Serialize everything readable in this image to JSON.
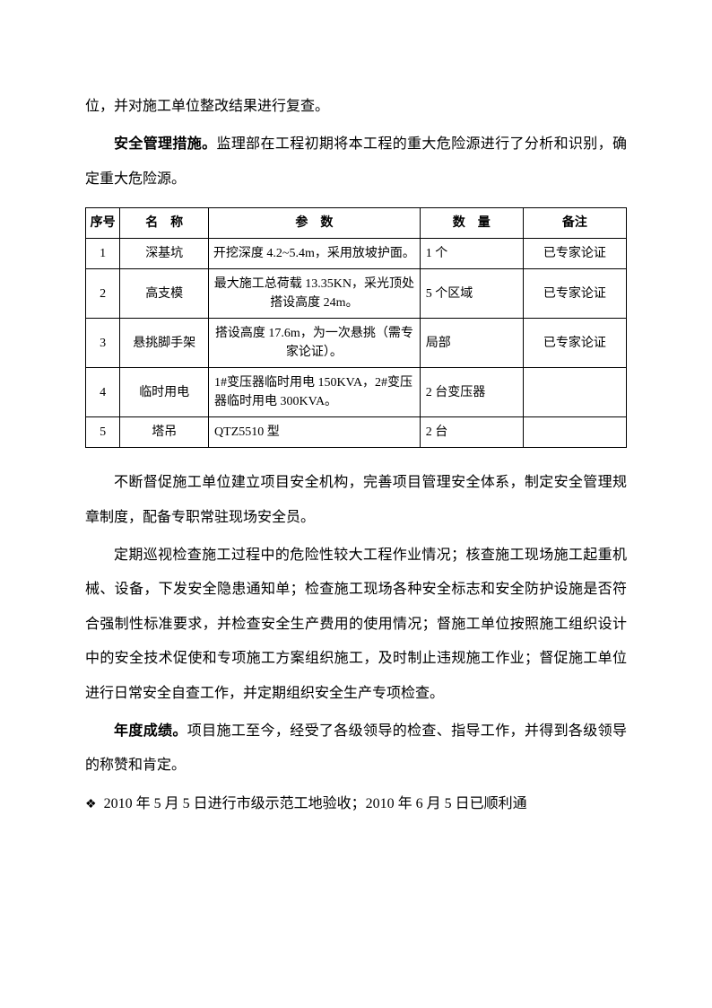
{
  "para1": "位，并对施工单位整改结果进行复查。",
  "para2_bold": "安全管理措施。",
  "para2_rest": "监理部在工程初期将本工程的重大危险源进行了分析和识别，确定重大危险源。",
  "table": {
    "headers": {
      "seq": "序号",
      "name": "名　称",
      "param": "参　数",
      "qty": "数　量",
      "remark": "备注"
    },
    "rows": [
      {
        "seq": "1",
        "name": "深基坑",
        "param": "开挖深度 4.2~5.4m，采用放坡护面。",
        "qty": "1 个",
        "remark": "已专家论证"
      },
      {
        "seq": "2",
        "name": "高支模",
        "param": "最大施工总荷载 13.35KN，采光顶处搭设高度 24m。",
        "qty": "5 个区域",
        "remark": "已专家论证"
      },
      {
        "seq": "3",
        "name": "悬挑脚手架",
        "param": "搭设高度 17.6m，为一次悬挑（需专家论证）。",
        "qty": "局部",
        "remark": "已专家论证"
      },
      {
        "seq": "4",
        "name": "临时用电",
        "param": "1#变压器临时用电 150KVA，2#变压器临时用电 300KVA。",
        "qty": "2 台变压器",
        "remark": ""
      },
      {
        "seq": "5",
        "name": "塔吊",
        "param": "QTZ5510 型",
        "qty": "2 台",
        "remark": ""
      }
    ]
  },
  "para3": "不断督促施工单位建立项目安全机构，完善项目管理安全体系，制定安全管理规章制度，配备专职常驻现场安全员。",
  "para4": "定期巡视检查施工过程中的危险性较大工程作业情况；核查施工现场施工起重机械、设备，下发安全隐患通知单；检查施工现场各种安全标志和安全防护设施是否符合强制性标准要求，并检查安全生产费用的使用情况；督施工单位按照施工组织设计中的安全技术促使和专项施工方案组织施工，及时制止违规施工作业；督促施工单位进行日常安全自查工作，并定期组织安全生产专项检查。",
  "para5_bold": "年度成绩。",
  "para5_rest": "项目施工至今，经受了各级领导的检查、指导工作，并得到各级领导的称赞和肯定。",
  "bullet_symbol": "❖",
  "bullet1": "2010 年 5 月 5 日进行市级示范工地验收；2010 年 6 月 5 日已顺利通"
}
